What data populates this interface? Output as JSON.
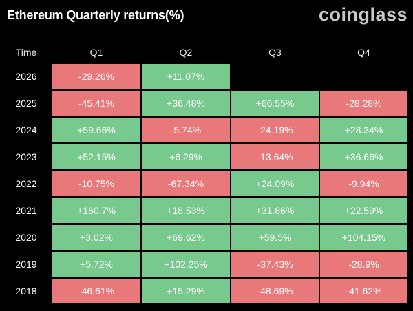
{
  "header": {
    "title": "Ethereum Quarterly returns(%)",
    "brand": "coinglass"
  },
  "colors": {
    "positive": "#78c98e",
    "negative": "#e8787a",
    "background": "#000000"
  },
  "chart_data": {
    "type": "table",
    "title": "Ethereum Quarterly returns(%)",
    "columns": [
      "Time",
      "Q1",
      "Q2",
      "Q3",
      "Q4"
    ],
    "rows": [
      {
        "year": "2026",
        "values": [
          "-29.26%",
          "+11.07%",
          "",
          ""
        ]
      },
      {
        "year": "2025",
        "values": [
          "-45.41%",
          "+36.48%",
          "+66.55%",
          "-28.28%"
        ]
      },
      {
        "year": "2024",
        "values": [
          "+59.66%",
          "-5.74%",
          "-24.19%",
          "+28.34%"
        ]
      },
      {
        "year": "2023",
        "values": [
          "+52.15%",
          "+6.29%",
          "-13.64%",
          "+36.66%"
        ]
      },
      {
        "year": "2022",
        "values": [
          "-10.75%",
          "-67.34%",
          "+24.09%",
          "-9.94%"
        ]
      },
      {
        "year": "2021",
        "values": [
          "+160.7%",
          "+18.53%",
          "+31.86%",
          "+22.59%"
        ]
      },
      {
        "year": "2020",
        "values": [
          "+3.02%",
          "+69.62%",
          "+59.5%",
          "+104.15%"
        ]
      },
      {
        "year": "2019",
        "values": [
          "+5.72%",
          "+102.25%",
          "-37.43%",
          "-28.9%"
        ]
      },
      {
        "year": "2018",
        "values": [
          "-46.61%",
          "+15.29%",
          "-48.69%",
          "-41.62%"
        ]
      }
    ]
  }
}
